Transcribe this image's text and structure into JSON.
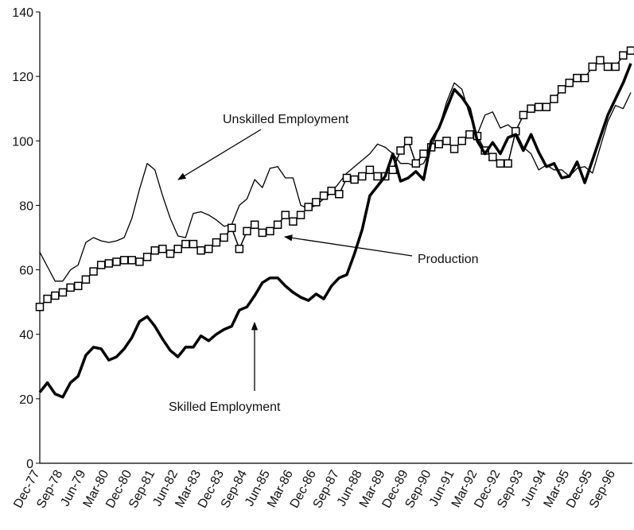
{
  "chart_data": {
    "type": "line",
    "categories": [
      "Dec-77",
      null,
      null,
      "Sep-78",
      null,
      null,
      "Jun-79",
      null,
      null,
      "Mar-80",
      null,
      null,
      "Dec-80",
      null,
      null,
      "Sep-81",
      null,
      null,
      "Jun-82",
      null,
      null,
      "Mar-83",
      null,
      null,
      "Dec-83",
      null,
      null,
      "Sep-84",
      null,
      null,
      "Jun-85",
      null,
      null,
      "Mar-86",
      null,
      null,
      "Dec-86",
      null,
      null,
      "Sep-87",
      null,
      null,
      "Jun-88",
      null,
      null,
      "Mar-89",
      null,
      null,
      "Dec-89",
      null,
      null,
      "Sep-90",
      null,
      null,
      "Jun-91",
      null,
      null,
      "Mar-92",
      null,
      null,
      "Dec-92",
      null,
      null,
      "Sep-93",
      null,
      null,
      "Jun-94",
      null,
      null,
      "Mar-95",
      null,
      null,
      "Dec-95",
      null,
      null,
      "Sep-96",
      null,
      null
    ],
    "series": [
      {
        "name": "Unskilled Employment",
        "color": "#000000",
        "line_width": 1.3,
        "marker": "none",
        "values": [
          65.5,
          61,
          56.5,
          56.5,
          60,
          61.5,
          68.5,
          70,
          69,
          68.5,
          69,
          70,
          76,
          85,
          93,
          91,
          83,
          76,
          70.5,
          70,
          77.5,
          78,
          77,
          75.5,
          73.5,
          74,
          80,
          82,
          88,
          85.5,
          91.5,
          92,
          88.5,
          88.5,
          80,
          79,
          80,
          82,
          84,
          87,
          90,
          92,
          94,
          96,
          99,
          98,
          96,
          93,
          93,
          92,
          93,
          98,
          104,
          112,
          118,
          116,
          108,
          102,
          108,
          109,
          104,
          105,
          103,
          98,
          96,
          91,
          92.5,
          91,
          91,
          89,
          91.5,
          92,
          90,
          98,
          106,
          111,
          110,
          115
        ]
      },
      {
        "name": "Production",
        "color": "#000000",
        "line_width": 1.5,
        "marker": "square",
        "values": [
          48.5,
          51,
          52,
          53,
          54.5,
          55,
          57,
          59.5,
          61.5,
          62,
          62.5,
          63,
          63,
          62.5,
          64,
          66,
          66.5,
          65,
          66.5,
          68,
          68,
          66,
          66.5,
          68.5,
          70,
          73,
          66.5,
          72,
          74,
          71.5,
          72,
          74,
          77,
          75,
          77,
          79.5,
          81,
          83,
          84.5,
          83.5,
          88.5,
          88,
          89,
          91,
          89,
          89,
          91,
          97,
          100,
          93,
          96,
          98,
          99,
          100,
          97.5,
          100,
          102,
          101.5,
          97,
          95,
          93,
          93,
          103,
          108,
          110,
          110.5,
          110.5,
          113,
          116,
          118,
          119.5,
          119.5,
          123,
          125,
          123,
          123,
          126.5,
          128
        ]
      },
      {
        "name": "Skilled Employment",
        "color": "#000000",
        "line_width": 3.5,
        "marker": "none",
        "values": [
          22,
          25,
          21.5,
          20.5,
          25,
          27,
          33.5,
          36,
          35.5,
          32,
          33,
          35.5,
          39,
          44,
          45.5,
          42.5,
          38.5,
          35,
          33,
          36,
          36,
          39.5,
          38,
          40,
          41.5,
          42.5,
          47.5,
          48.5,
          52,
          56,
          57.5,
          57.5,
          55,
          53,
          51.5,
          50.5,
          52.5,
          51,
          55,
          57.5,
          58.5,
          65,
          72.5,
          83,
          86,
          89,
          96,
          87.5,
          88.5,
          90.5,
          88,
          100,
          104,
          110,
          116,
          113.5,
          110,
          100,
          96,
          99.5,
          96,
          101,
          102,
          97,
          102,
          96.5,
          92,
          93,
          88.5,
          89,
          93.5,
          87,
          94,
          101,
          108,
          113,
          118,
          124
        ]
      }
    ],
    "ylim": [
      0,
      140
    ],
    "yticks": [
      0,
      20,
      40,
      60,
      80,
      100,
      120,
      140
    ]
  }
}
